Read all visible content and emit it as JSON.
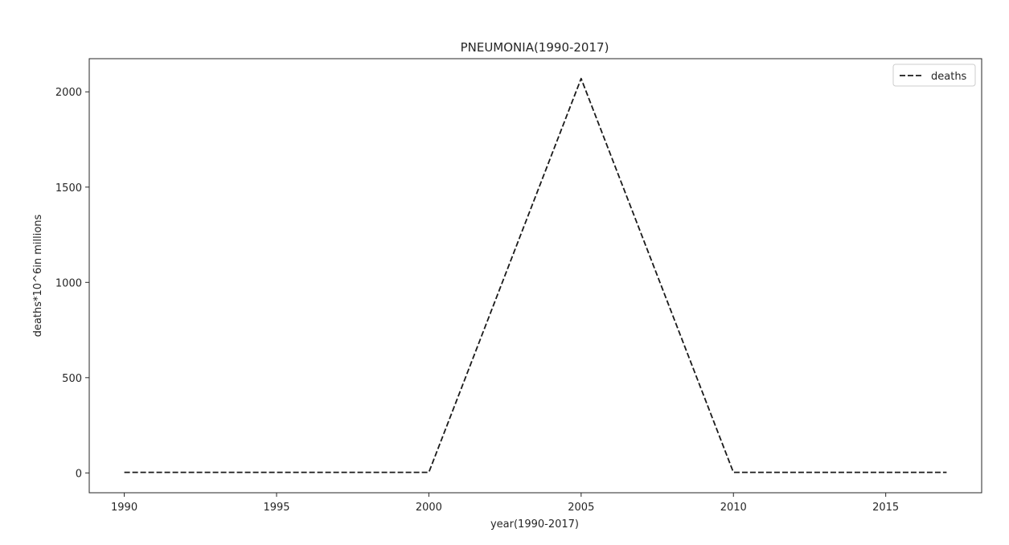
{
  "chart_data": {
    "type": "line",
    "title": "PNEUMONIA(1990-2017)",
    "xlabel": "year(1990-2017)",
    "ylabel": "deaths*10^6in millions",
    "xlim": [
      1988.85,
      2018.15
    ],
    "ylim": [
      -104,
      2174
    ],
    "x_ticks": [
      1990,
      1995,
      2000,
      2005,
      2010,
      2015
    ],
    "y_ticks": [
      0,
      500,
      1000,
      1500,
      2000
    ],
    "grid": false,
    "legend_position": "top-right",
    "series": [
      {
        "name": "deaths",
        "line_style": "dashed",
        "color": "#1a1a1a",
        "x": [
          1990,
          2000,
          2005,
          2010,
          2017
        ],
        "y": [
          3,
          3,
          2070,
          3,
          3
        ]
      }
    ]
  }
}
